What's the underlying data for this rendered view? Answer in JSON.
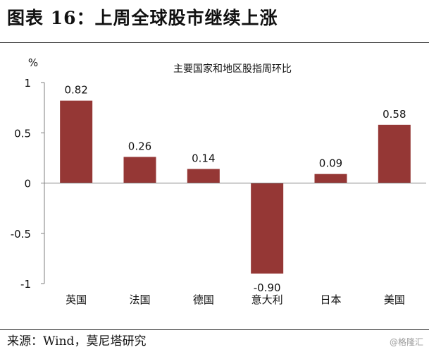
{
  "figure": {
    "title": "图表 16：上周全球股市继续上涨",
    "source": "来源：Wind，莫尼塔研究",
    "watermark": "@格隆汇"
  },
  "chart_data": {
    "type": "bar",
    "title": "主要国家和地区股指周环比",
    "ylabel": "%",
    "xlabel": "",
    "categories": [
      "英国",
      "法国",
      "德国",
      "意大利",
      "日本",
      "美国"
    ],
    "values": [
      0.82,
      0.26,
      0.14,
      -0.9,
      0.09,
      0.58
    ],
    "data_labels": [
      "0.82",
      "0.26",
      "0.14",
      "-0.90",
      "0.09",
      "0.58"
    ],
    "ylim": [
      -1,
      1
    ],
    "yticks": [
      1,
      0.5,
      0,
      -0.5,
      -1
    ],
    "ytick_labels": [
      "1",
      "0.5",
      "0",
      "-0.5",
      "-1"
    ],
    "bar_color": "#953735",
    "grid": false,
    "legend": "none"
  }
}
